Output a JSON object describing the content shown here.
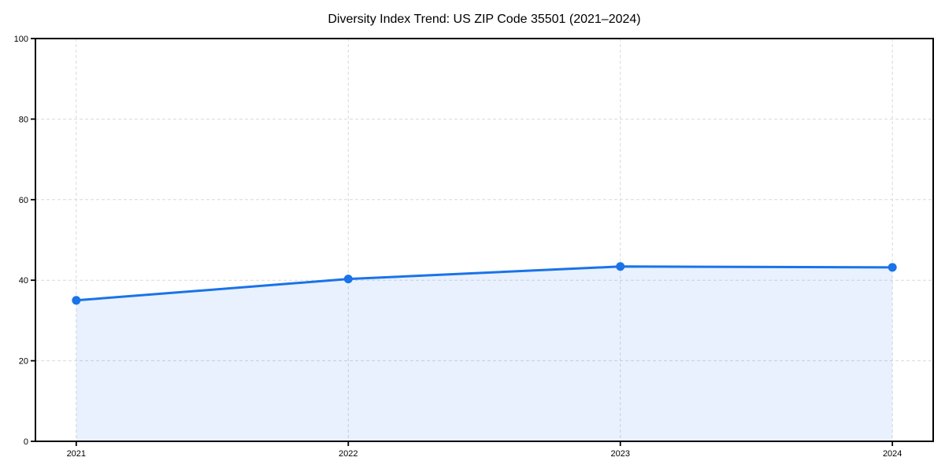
{
  "chart_data": {
    "type": "line",
    "title": "Diversity Index Trend: US ZIP Code 35501 (2021–2024)",
    "categories": [
      "2021",
      "2022",
      "2023",
      "2024"
    ],
    "x": [
      2021,
      2022,
      2023,
      2024
    ],
    "series": [
      {
        "name": "Diversity Index",
        "values": [
          35.0,
          40.3,
          43.4,
          43.2
        ]
      }
    ],
    "xlabel": "",
    "ylabel": "",
    "xlim": [
      2020.85,
      2024.15
    ],
    "ylim": [
      0,
      100
    ],
    "yticks": [
      0,
      20,
      40,
      60,
      80,
      100
    ],
    "grid": true,
    "grid_style": "dashed",
    "legend": false,
    "area_fill": true,
    "marker": "circle",
    "colors": {
      "line": "#1a73e8",
      "marker": "#1a73e8",
      "fill": "#1a73e8",
      "fill_opacity": 0.1,
      "grid": "#d9d9d9",
      "spine": "#000000",
      "tick_label": "#000000",
      "title": "#000000",
      "background": "#ffffff"
    }
  }
}
